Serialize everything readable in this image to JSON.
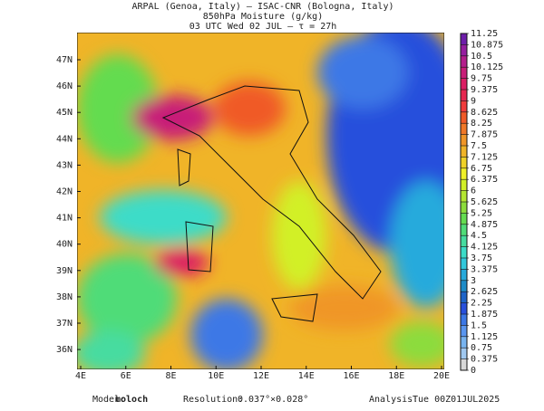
{
  "header": {
    "line1": "ARPAL (Genoa, Italy)  –  ISAC-CNR (Bologna, Italy)",
    "line2": "850hPa Moisture (g/kg)",
    "line3": "03 UTC Wed 02 JUL  –  τ = 27h"
  },
  "map": {
    "lat_labels": [
      "47N",
      "46N",
      "45N",
      "44N",
      "43N",
      "42N",
      "41N",
      "40N",
      "39N",
      "38N",
      "37N",
      "36N"
    ],
    "lon_labels": [
      "4E",
      "6E",
      "8E",
      "10E",
      "12E",
      "14E",
      "16E",
      "18E",
      "20E"
    ]
  },
  "colorbar": {
    "levels": [
      0,
      0.375,
      0.75,
      1.125,
      1.5,
      1.875,
      2.25,
      2.625,
      3,
      3.375,
      3.75,
      4.125,
      4.5,
      4.875,
      5.25,
      5.625,
      6,
      6.375,
      6.75,
      7.125,
      7.5,
      7.875,
      8.25,
      8.625,
      9,
      9.375,
      9.75,
      10.125,
      10.5,
      10.875,
      11.25
    ],
    "colors": [
      "#d8d8d8",
      "#a0c8f0",
      "#78b4f0",
      "#5a96f0",
      "#3c78e6",
      "#2850dc",
      "#1e64c8",
      "#1e8cc8",
      "#28aadc",
      "#32c8dc",
      "#3cdcc8",
      "#46dca0",
      "#50dc78",
      "#64dc50",
      "#8cdc3c",
      "#b4e632",
      "#d2f028",
      "#f0f028",
      "#f0d228",
      "#f0b428",
      "#f09628",
      "#f07828",
      "#f05a28",
      "#f03c3c",
      "#e62850",
      "#dc1e64",
      "#c81e78",
      "#b41e8c",
      "#961ea0",
      "#6e1eaa"
    ]
  },
  "footer": {
    "model_label": "Model:",
    "model": "moloch",
    "resolution_label": "Resolution:",
    "resolution": "0.037°×0.028°",
    "analysis_label": "Analysis:",
    "analysis": "Tue 00Z01JUL2025"
  }
}
